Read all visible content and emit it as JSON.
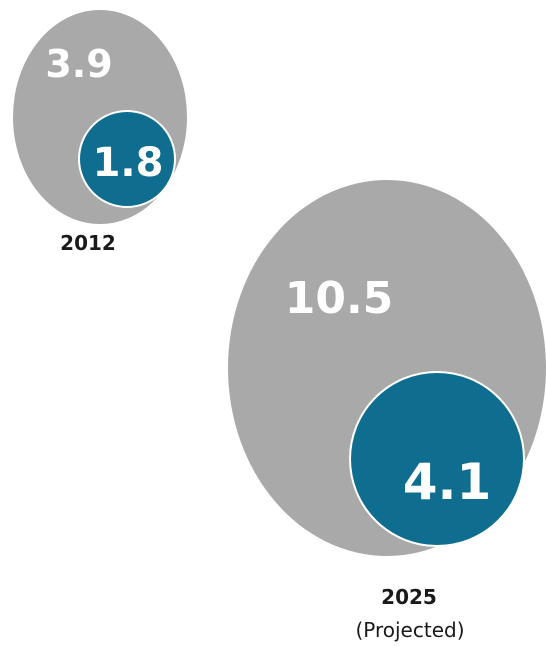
{
  "chart_data": {
    "type": "bubble",
    "groups": [
      {
        "label": "2012",
        "sublabel": "",
        "outer_value": "3.9",
        "inner_value": "1.8"
      },
      {
        "label": "2025",
        "sublabel": "(Projected)",
        "outer_value": "10.5",
        "inner_value": "4.1"
      }
    ],
    "colors": {
      "outer": "#a9a9a9",
      "inner": "#0f6e8f",
      "value_text": "#ffffff",
      "label_text": "#1a1a1a"
    }
  }
}
